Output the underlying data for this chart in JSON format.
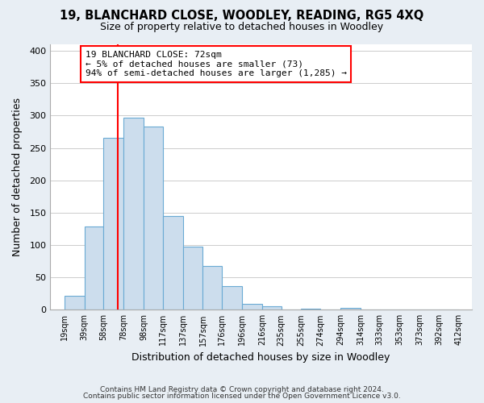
{
  "title": "19, BLANCHARD CLOSE, WOODLEY, READING, RG5 4XQ",
  "subtitle": "Size of property relative to detached houses in Woodley",
  "xlabel": "Distribution of detached houses by size in Woodley",
  "ylabel": "Number of detached properties",
  "bar_left_edges": [
    19,
    39,
    58,
    78,
    98,
    117,
    137,
    157,
    176,
    196,
    216,
    235,
    255,
    274,
    294,
    314,
    333,
    353,
    373,
    392
  ],
  "bar_heights": [
    22,
    128,
    265,
    297,
    283,
    145,
    98,
    67,
    37,
    9,
    5,
    0,
    2,
    0,
    3,
    0,
    1,
    0,
    1,
    0
  ],
  "bar_widths": [
    20,
    19,
    20,
    20,
    19,
    20,
    20,
    19,
    20,
    20,
    19,
    20,
    19,
    20,
    20,
    19,
    20,
    20,
    19,
    20
  ],
  "bar_color": "#ccdded",
  "bar_edgecolor": "#6aaad4",
  "vline_x": 72,
  "vline_color": "red",
  "annotation_text": "19 BLANCHARD CLOSE: 72sqm\n← 5% of detached houses are smaller (73)\n94% of semi-detached houses are larger (1,285) →",
  "annotation_box_color": "white",
  "annotation_box_edgecolor": "red",
  "tick_labels": [
    "19sqm",
    "39sqm",
    "58sqm",
    "78sqm",
    "98sqm",
    "117sqm",
    "137sqm",
    "157sqm",
    "176sqm",
    "196sqm",
    "216sqm",
    "235sqm",
    "255sqm",
    "274sqm",
    "294sqm",
    "314sqm",
    "333sqm",
    "353sqm",
    "373sqm",
    "392sqm",
    "412sqm"
  ],
  "tick_positions": [
    19,
    39,
    58,
    78,
    98,
    117,
    137,
    157,
    176,
    196,
    216,
    235,
    255,
    274,
    294,
    314,
    333,
    353,
    373,
    392,
    412
  ],
  "ylim": [
    0,
    410
  ],
  "xlim": [
    5,
    425
  ],
  "yticks": [
    0,
    50,
    100,
    150,
    200,
    250,
    300,
    350,
    400
  ],
  "footer_line1": "Contains HM Land Registry data © Crown copyright and database right 2024.",
  "footer_line2": "Contains public sector information licensed under the Open Government Licence v3.0.",
  "background_color": "#e8eef4",
  "plot_background_color": "#ffffff",
  "grid_color": "#cccccc"
}
